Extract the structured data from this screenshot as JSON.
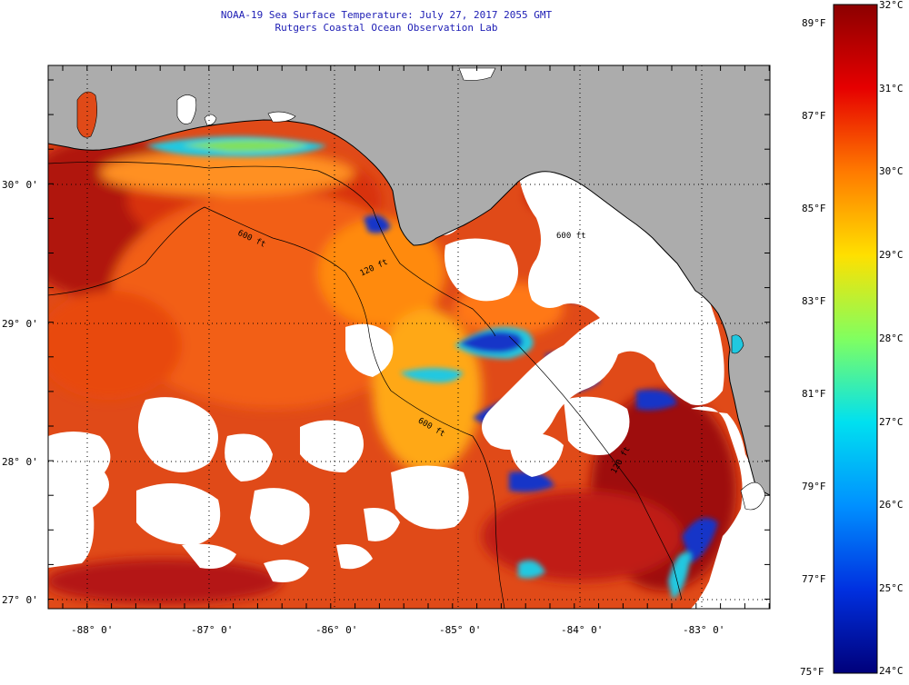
{
  "title": {
    "line1": "NOAA-19 Sea Surface Temperature:  July 27, 2017 2055 GMT",
    "line2": "Rutgers Coastal Ocean Observation Lab"
  },
  "map": {
    "lon_ticks": [
      "-88° 0'",
      "-87° 0'",
      "-86° 0'",
      "-85° 0'",
      "-84° 0'",
      "-83° 0'"
    ],
    "lat_ticks": [
      "30° 0'",
      "29° 0'",
      "28° 0'",
      "27° 0'"
    ],
    "isobaths": [
      "120 ft",
      "600 ft",
      "600 ft",
      "120 ft",
      "600 ft"
    ],
    "colors": {
      "land": "#acacac",
      "cloud": "#ffffff",
      "warm": "#d42a1a",
      "hot": "#a8120e",
      "orange": "#f26410",
      "cool": "#1436c8",
      "cyan": "#20c8e0",
      "frame": "#000000"
    }
  },
  "colorbar": {
    "f_labels": [
      "89°F",
      "87°F",
      "85°F",
      "83°F",
      "81°F",
      "79°F",
      "77°F",
      "75°F"
    ],
    "c_labels": [
      "32°C",
      "31°C",
      "30°C",
      "29°C",
      "28°C",
      "27°C",
      "26°C",
      "25°C",
      "24°C"
    ],
    "stops": [
      "#8c0000",
      "#e60000",
      "#ff7a00",
      "#ffe000",
      "#80ff60",
      "#00e0f0",
      "#0090ff",
      "#0030e0",
      "#00007a"
    ]
  }
}
